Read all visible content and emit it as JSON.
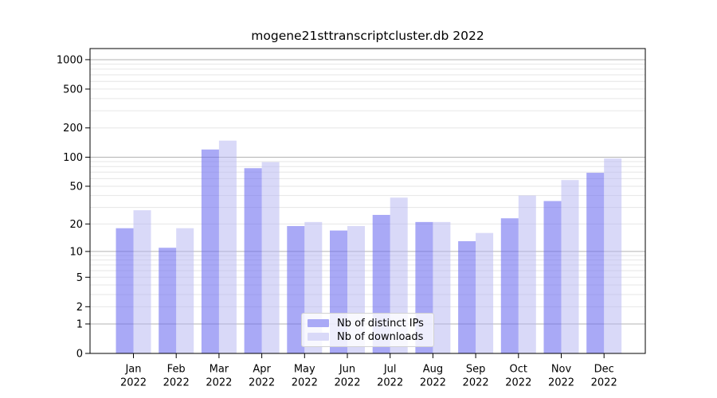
{
  "chart_data": {
    "type": "bar",
    "title": "mogene21sttranscriptcluster.db 2022",
    "categories": [
      "Jan",
      "Feb",
      "Mar",
      "Apr",
      "May",
      "Jun",
      "Jul",
      "Aug",
      "Sep",
      "Oct",
      "Nov",
      "Dec"
    ],
    "x_tick_year": "2022",
    "series": [
      {
        "name": "Nb of distinct IPs",
        "color": "#a9a9f6",
        "fill": "rgba(107,107,240,0.58)",
        "values": [
          18,
          11,
          120,
          77,
          19,
          17,
          25,
          21,
          13,
          23,
          35,
          69
        ]
      },
      {
        "name": "Nb of downloads",
        "color": "#d9d9f8",
        "fill": "rgba(180,180,241,0.5)",
        "values": [
          28,
          18,
          148,
          89,
          21,
          19,
          38,
          21,
          16,
          40,
          58,
          97
        ]
      }
    ],
    "y_scale": "log1p",
    "y_ticks": [
      1000,
      500,
      200,
      100,
      50,
      20,
      10,
      5,
      2,
      1,
      0
    ],
    "y_major_gridlines": [
      1,
      10,
      100,
      1000
    ],
    "ylim": [
      0,
      1300
    ],
    "grid": true,
    "legend_position": "lower center",
    "axis_color": "#000000",
    "grid_major_color": "#b3b3b3",
    "grid_minor_color": "#e6e6e6",
    "tick_label_color": "#000000"
  }
}
